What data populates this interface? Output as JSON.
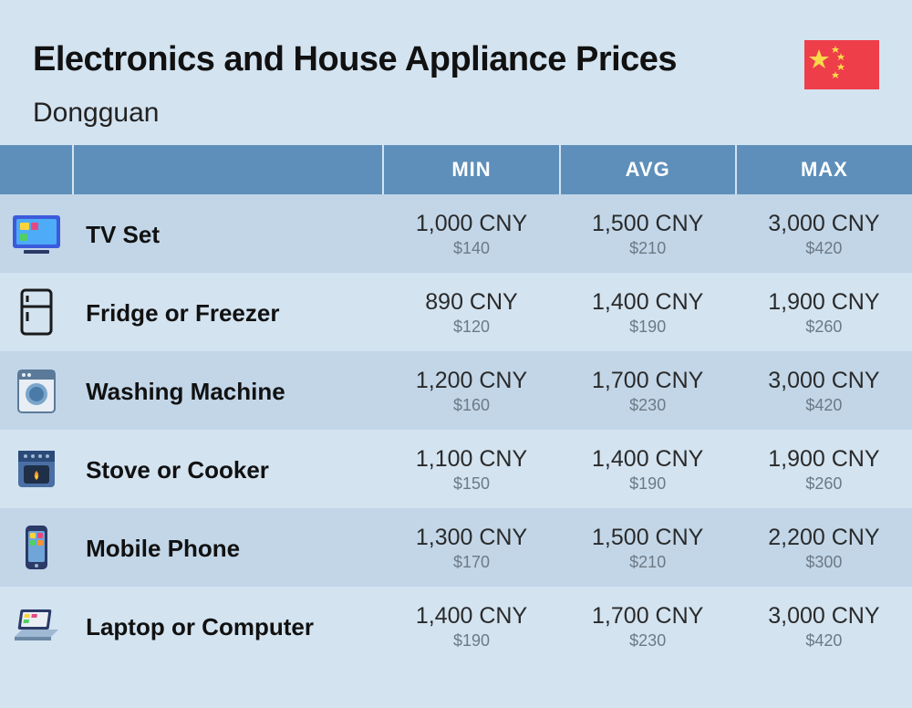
{
  "title": "Electronics and House Appliance Prices",
  "city": "Dongguan",
  "country_flag": "china",
  "columns": {
    "min": "MIN",
    "avg": "AVG",
    "max": "MAX"
  },
  "colors": {
    "page_bg": "#d3e3f0",
    "header_bg": "#5e8fba",
    "row_odd": "#c2d6e8",
    "row_even": "#d3e3f0",
    "price_main": "#2a2a2a",
    "price_sub": "#6d7a85",
    "flag_red": "#ee3e4a",
    "flag_yellow": "#f9d94a"
  },
  "typography": {
    "title_fontsize": 38,
    "city_fontsize": 30,
    "header_fontsize": 22,
    "name_fontsize": 26,
    "price_main_fontsize": 25,
    "price_sub_fontsize": 18
  },
  "rows": [
    {
      "icon": "tv",
      "name": "TV Set",
      "min": {
        "cny": "1,000 CNY",
        "usd": "$140"
      },
      "avg": {
        "cny": "1,500 CNY",
        "usd": "$210"
      },
      "max": {
        "cny": "3,000 CNY",
        "usd": "$420"
      }
    },
    {
      "icon": "fridge",
      "name": "Fridge or Freezer",
      "min": {
        "cny": "890 CNY",
        "usd": "$120"
      },
      "avg": {
        "cny": "1,400 CNY",
        "usd": "$190"
      },
      "max": {
        "cny": "1,900 CNY",
        "usd": "$260"
      }
    },
    {
      "icon": "washer",
      "name": "Washing Machine",
      "min": {
        "cny": "1,200 CNY",
        "usd": "$160"
      },
      "avg": {
        "cny": "1,700 CNY",
        "usd": "$230"
      },
      "max": {
        "cny": "3,000 CNY",
        "usd": "$420"
      }
    },
    {
      "icon": "stove",
      "name": "Stove or Cooker",
      "min": {
        "cny": "1,100 CNY",
        "usd": "$150"
      },
      "avg": {
        "cny": "1,400 CNY",
        "usd": "$190"
      },
      "max": {
        "cny": "1,900 CNY",
        "usd": "$260"
      }
    },
    {
      "icon": "phone",
      "name": "Mobile Phone",
      "min": {
        "cny": "1,300 CNY",
        "usd": "$170"
      },
      "avg": {
        "cny": "1,500 CNY",
        "usd": "$210"
      },
      "max": {
        "cny": "2,200 CNY",
        "usd": "$300"
      }
    },
    {
      "icon": "laptop",
      "name": "Laptop or Computer",
      "min": {
        "cny": "1,400 CNY",
        "usd": "$190"
      },
      "avg": {
        "cny": "1,700 CNY",
        "usd": "$230"
      },
      "max": {
        "cny": "3,000 CNY",
        "usd": "$420"
      }
    }
  ]
}
